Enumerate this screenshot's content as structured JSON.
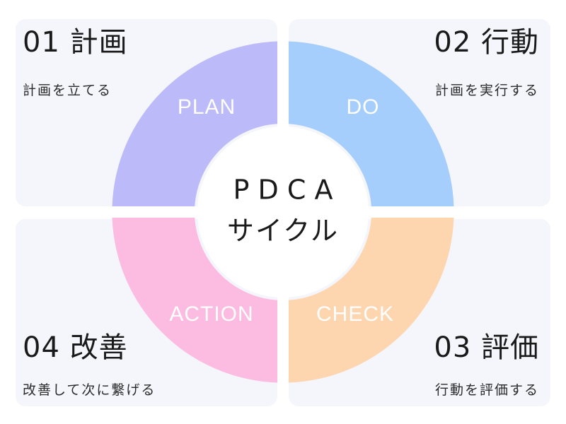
{
  "center": {
    "line1": "P D C A",
    "line2": "サイクル"
  },
  "steps": {
    "plan": {
      "title": "01 計画",
      "description": "計画を立てる",
      "ring_label": "PLAN",
      "color": "#bcbaf9"
    },
    "do": {
      "title": "02 行動",
      "description": "計画を実行する",
      "ring_label": "DO",
      "color": "#a5cefc"
    },
    "check": {
      "title": "03 評価",
      "description": "行動を評価する",
      "ring_label": "CHECK",
      "color": "#fdd6b0"
    },
    "act": {
      "title": "04 改善",
      "description": "改善して次に繋げる",
      "ring_label": "ACTION",
      "color": "#fcbce1"
    }
  },
  "colors": {
    "panel_background": "#f5f6fc",
    "center_fill": "#ffffff",
    "ring_label": "#ffffff"
  }
}
